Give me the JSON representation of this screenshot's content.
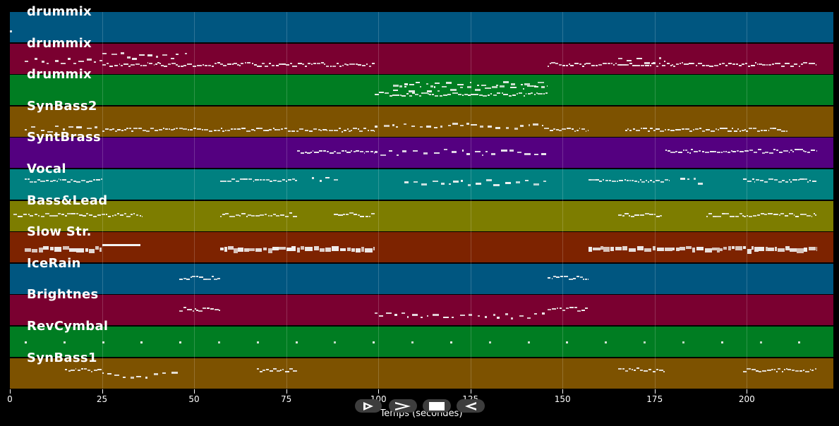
{
  "tracks": [
    {
      "name": "drummix",
      "color": "#005680"
    },
    {
      "name": "drummix",
      "color": "#7a0030"
    },
    {
      "name": "drummix",
      "color": "#007d22"
    },
    {
      "name": "SynBass2",
      "color": "#7d5200"
    },
    {
      "name": "SyntBrass",
      "color": "#540080"
    },
    {
      "name": "Vocal",
      "color": "#008080"
    },
    {
      "name": "Bass&Lead",
      "color": "#7d7d00"
    },
    {
      "name": "Slow Str.",
      "color": "#7d2300"
    },
    {
      "name": "IceRain",
      "color": "#005680"
    },
    {
      "name": "Brightnes",
      "color": "#7a0030"
    },
    {
      "name": "RevCymbal",
      "color": "#007d22"
    },
    {
      "name": "SynBass1",
      "color": "#7d5200"
    }
  ],
  "axis": {
    "xlabel": "Temps (secondes)",
    "ticks": [
      "0",
      "25",
      "50",
      "75",
      "100",
      "125",
      "150",
      "175",
      "200"
    ],
    "tick_values": [
      0,
      25,
      50,
      75,
      100,
      125,
      150,
      175,
      200
    ],
    "xmax": 223.5
  },
  "controls": [
    {
      "name": "play-icon"
    },
    {
      "name": "fast-forward-icon"
    },
    {
      "name": "stop-icon"
    },
    {
      "name": "rewind-icon"
    }
  ],
  "note_segments": [
    [
      {
        "start": 0,
        "end": 0.5,
        "dense": false,
        "y": 0.65
      }
    ],
    [
      {
        "start": 4,
        "end": 25,
        "dense": false,
        "y": 0.55
      },
      {
        "start": 25,
        "end": 99,
        "dense": true,
        "y": 0.68
      },
      {
        "start": 25,
        "end": 48,
        "dense": false,
        "y": 0.38
      },
      {
        "start": 146,
        "end": 219,
        "dense": true,
        "y": 0.68
      },
      {
        "start": 165,
        "end": 178,
        "dense": false,
        "y": 0.55
      }
    ],
    [
      {
        "start": 104,
        "end": 146,
        "dense": false,
        "y": 0.28
      },
      {
        "start": 99,
        "end": 146,
        "dense": true,
        "y": 0.62
      },
      {
        "start": 104,
        "end": 146,
        "dense": false,
        "y": 0.42
      }
    ],
    [
      {
        "start": 4,
        "end": 25,
        "dense": false,
        "y": 0.72
      },
      {
        "start": 25,
        "end": 99,
        "dense": true,
        "y": 0.75
      },
      {
        "start": 99,
        "end": 145,
        "dense": false,
        "y": 0.62
      },
      {
        "start": 145,
        "end": 157,
        "dense": true,
        "y": 0.75
      },
      {
        "start": 167,
        "end": 211,
        "dense": true,
        "y": 0.75
      }
    ],
    [
      {
        "start": 78,
        "end": 99,
        "dense": true,
        "y": 0.42
      },
      {
        "start": 99,
        "end": 146,
        "dense": false,
        "y": 0.46
      },
      {
        "start": 178,
        "end": 219,
        "dense": true,
        "y": 0.42
      }
    ],
    [
      {
        "start": 4,
        "end": 25,
        "dense": true,
        "y": 0.35
      },
      {
        "start": 57,
        "end": 78,
        "dense": true,
        "y": 0.35
      },
      {
        "start": 82,
        "end": 89,
        "dense": false,
        "y": 0.28
      },
      {
        "start": 107,
        "end": 146,
        "dense": false,
        "y": 0.4
      },
      {
        "start": 157,
        "end": 179,
        "dense": true,
        "y": 0.35
      },
      {
        "start": 182,
        "end": 188,
        "dense": false,
        "y": 0.35
      },
      {
        "start": 199,
        "end": 219,
        "dense": true,
        "y": 0.35
      }
    ],
    [
      {
        "start": 1,
        "end": 36,
        "dense": true,
        "y": 0.45
      },
      {
        "start": 57,
        "end": 78,
        "dense": true,
        "y": 0.45
      },
      {
        "start": 88,
        "end": 99,
        "dense": true,
        "y": 0.45
      },
      {
        "start": 165,
        "end": 177,
        "dense": true,
        "y": 0.45
      },
      {
        "start": 189,
        "end": 219,
        "dense": true,
        "y": 0.45
      }
    ],
    [
      {
        "start": 4,
        "end": 25,
        "dense": true,
        "y": 0.5,
        "thick": true
      },
      {
        "start": 25,
        "end": 35.5,
        "dense": false,
        "y": 0.38,
        "thick": true,
        "solid": true
      },
      {
        "start": 57,
        "end": 99,
        "dense": true,
        "y": 0.5,
        "thick": true
      },
      {
        "start": 157,
        "end": 219,
        "dense": true,
        "y": 0.5,
        "thick": true
      }
    ],
    [
      {
        "start": 46,
        "end": 57,
        "dense": true,
        "y": 0.45
      },
      {
        "start": 146,
        "end": 157,
        "dense": true,
        "y": 0.45
      }
    ],
    [
      {
        "start": 46,
        "end": 57,
        "dense": true,
        "y": 0.45
      },
      {
        "start": 99,
        "end": 146,
        "dense": false,
        "y": 0.65
      },
      {
        "start": 146,
        "end": 157,
        "dense": true,
        "y": 0.45
      }
    ],
    [
      {
        "start": 4,
        "end": 219,
        "dense": false,
        "y": 0.48,
        "sparse": true
      }
    ],
    [
      {
        "start": 15,
        "end": 25,
        "dense": true,
        "y": 0.38
      },
      {
        "start": 25,
        "end": 46,
        "dense": false,
        "y": 0.55
      },
      {
        "start": 67,
        "end": 78,
        "dense": true,
        "y": 0.38
      },
      {
        "start": 165,
        "end": 178,
        "dense": true,
        "y": 0.38
      },
      {
        "start": 199,
        "end": 219,
        "dense": true,
        "y": 0.38
      }
    ]
  ]
}
